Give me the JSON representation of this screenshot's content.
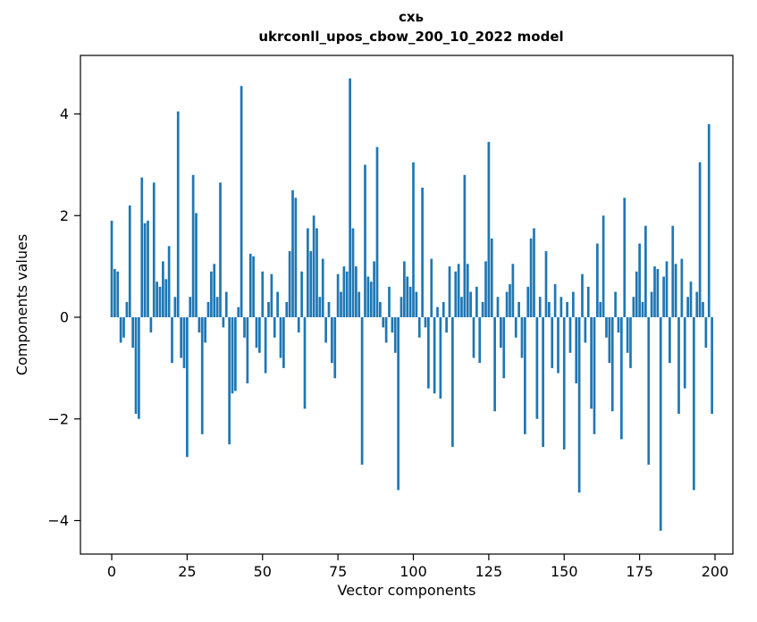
{
  "chart_data": {
    "type": "bar",
    "title": "схь",
    "subtitle": "ukrconll_upos_cbow_200_10_2022 model",
    "xlabel": "Vector components",
    "ylabel": "Components values",
    "bar_color": "#1f77b4",
    "xlim": [
      -10.4,
      205.9
    ],
    "ylim": [
      -4.66,
      5.15
    ],
    "x_ticks": [
      0,
      25,
      50,
      75,
      100,
      125,
      150,
      175,
      200
    ],
    "y_ticks": [
      -4,
      -2,
      0,
      2,
      4
    ],
    "grid": false,
    "legend": "none",
    "x": "index 0..199",
    "values": [
      1.9,
      0.95,
      0.9,
      -0.5,
      -0.4,
      0.3,
      2.2,
      -0.6,
      -1.9,
      -2.0,
      2.75,
      1.85,
      1.9,
      -0.3,
      2.65,
      0.7,
      0.6,
      1.1,
      0.75,
      1.4,
      -0.9,
      0.4,
      4.05,
      -0.8,
      -1.0,
      -2.75,
      0.4,
      2.8,
      2.05,
      -0.3,
      -2.3,
      -0.5,
      0.3,
      0.9,
      1.05,
      0.4,
      2.65,
      -0.2,
      0.5,
      -2.5,
      -1.5,
      -1.45,
      0.2,
      4.55,
      -0.4,
      -1.3,
      1.25,
      1.2,
      -0.6,
      -0.7,
      0.9,
      -1.1,
      0.3,
      0.85,
      -0.4,
      0.5,
      -0.8,
      -1.0,
      0.3,
      1.3,
      2.5,
      2.35,
      -0.3,
      0.9,
      -1.8,
      1.75,
      1.3,
      2.0,
      1.75,
      0.4,
      1.15,
      -0.5,
      0.3,
      -0.9,
      -1.2,
      0.85,
      0.5,
      1.0,
      0.9,
      4.7,
      1.75,
      1.0,
      0.5,
      -2.9,
      3.0,
      0.8,
      0.7,
      1.1,
      3.35,
      0.3,
      -0.2,
      -0.5,
      0.6,
      -0.3,
      -0.7,
      -3.4,
      0.4,
      1.1,
      0.8,
      0.6,
      3.05,
      0.5,
      -0.4,
      2.55,
      -0.2,
      -1.4,
      1.15,
      -1.5,
      0.2,
      -1.6,
      0.3,
      -0.3,
      1.0,
      -2.55,
      0.9,
      1.05,
      0.4,
      2.8,
      1.05,
      0.5,
      -0.8,
      0.6,
      -0.9,
      0.3,
      1.1,
      3.45,
      1.55,
      -1.85,
      0.4,
      -0.6,
      -1.2,
      0.5,
      0.65,
      1.05,
      -0.4,
      0.3,
      -0.8,
      -2.3,
      0.6,
      1.55,
      1.75,
      -2.0,
      0.4,
      -2.55,
      1.3,
      0.3,
      -1.0,
      0.65,
      -1.1,
      0.4,
      -2.6,
      0.3,
      -0.7,
      0.5,
      -1.3,
      -3.45,
      0.85,
      -0.5,
      0.6,
      -1.8,
      -2.3,
      1.45,
      0.3,
      2.0,
      -0.4,
      -0.9,
      -1.85,
      0.5,
      -0.3,
      -2.4,
      2.35,
      -0.7,
      -1.0,
      0.4,
      0.9,
      1.45,
      0.3,
      1.8,
      -2.9,
      0.5,
      1.0,
      0.95,
      -4.2,
      0.8,
      1.1,
      -0.9,
      1.8,
      1.05,
      -1.9,
      1.15,
      -1.4,
      0.4,
      0.7,
      -3.4,
      0.5,
      3.05,
      0.3,
      -0.6,
      3.8,
      -1.9
    ]
  }
}
